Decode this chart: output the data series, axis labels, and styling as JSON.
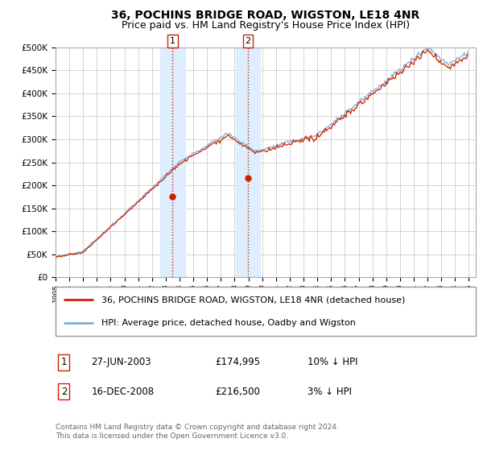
{
  "title": "36, POCHINS BRIDGE ROAD, WIGSTON, LE18 4NR",
  "subtitle": "Price paid vs. HM Land Registry's House Price Index (HPI)",
  "ylim": [
    0,
    500000
  ],
  "yticks": [
    0,
    50000,
    100000,
    150000,
    200000,
    250000,
    300000,
    350000,
    400000,
    450000,
    500000
  ],
  "ytick_labels": [
    "£0",
    "£50K",
    "£100K",
    "£150K",
    "£200K",
    "£250K",
    "£300K",
    "£350K",
    "£400K",
    "£450K",
    "£500K"
  ],
  "xlim_start": 1995.0,
  "xlim_end": 2025.5,
  "sale1_x": 2003.49,
  "sale1_y": 174995,
  "sale1_label": "1",
  "sale1_date": "27-JUN-2003",
  "sale1_price": "£174,995",
  "sale1_hpi": "10% ↓ HPI",
  "sale2_x": 2008.96,
  "sale2_y": 216500,
  "sale2_label": "2",
  "sale2_date": "16-DEC-2008",
  "sale2_price": "£216,500",
  "sale2_hpi": "3% ↓ HPI",
  "hpi_line_color": "#7dadd4",
  "price_line_color": "#cc2200",
  "sale_marker_color": "#cc2200",
  "shade_color": "#ddeeff",
  "grid_color": "#cccccc",
  "legend_line1": "36, POCHINS BRIDGE ROAD, WIGSTON, LE18 4NR (detached house)",
  "legend_line2": "HPI: Average price, detached house, Oadby and Wigston",
  "footnote": "Contains HM Land Registry data © Crown copyright and database right 2024.\nThis data is licensed under the Open Government Licence v3.0.",
  "background_color": "#ffffff",
  "title_fontsize": 10,
  "subtitle_fontsize": 9
}
